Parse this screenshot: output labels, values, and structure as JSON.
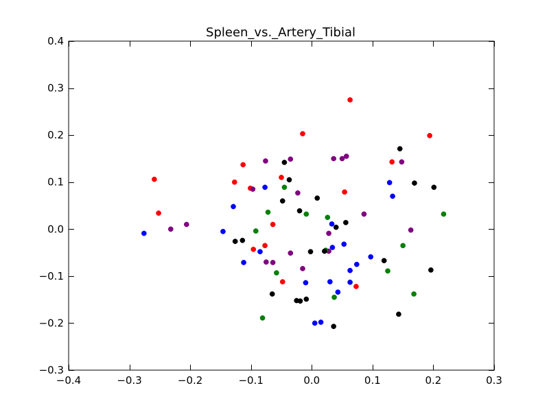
{
  "chart_data": {
    "type": "scatter",
    "title": "Spleen_vs._Artery_Tibial",
    "xlabel": "",
    "ylabel": "",
    "xlim": [
      -0.4,
      0.3
    ],
    "ylim": [
      -0.3,
      0.4
    ],
    "xticks": [
      -0.4,
      -0.3,
      -0.2,
      -0.1,
      0.0,
      0.1,
      0.2,
      0.3
    ],
    "yticks": [
      -0.3,
      -0.2,
      -0.1,
      0.0,
      0.1,
      0.2,
      0.3,
      0.4
    ],
    "xtick_labels": [
      "−0.4",
      "−0.3",
      "−0.2",
      "−0.1",
      "0.0",
      "0.1",
      "0.2",
      "0.3"
    ],
    "ytick_labels": [
      "−0.3",
      "−0.2",
      "−0.1",
      "0.0",
      "0.1",
      "0.2",
      "0.3",
      "0.4"
    ],
    "grid": false,
    "legend": "none",
    "series": [
      {
        "color": "#ff0000",
        "points": [
          [
            -0.259,
            0.106
          ],
          [
            -0.252,
            0.034
          ],
          [
            -0.113,
            0.137
          ],
          [
            -0.127,
            0.1
          ],
          [
            -0.101,
            0.087
          ],
          [
            -0.096,
            -0.043
          ],
          [
            -0.077,
            -0.035
          ],
          [
            -0.064,
            0.01
          ],
          [
            -0.05,
            0.11
          ],
          [
            -0.048,
            -0.112
          ],
          [
            -0.015,
            0.203
          ],
          [
            0.054,
            0.079
          ],
          [
            0.063,
            0.275
          ],
          [
            0.073,
            -0.122
          ],
          [
            0.132,
            0.143
          ],
          [
            0.194,
            0.199
          ]
        ]
      },
      {
        "color": "#800080",
        "points": [
          [
            -0.232,
            0.0
          ],
          [
            -0.206,
            0.01
          ],
          [
            -0.097,
            0.085
          ],
          [
            -0.076,
            0.145
          ],
          [
            -0.075,
            -0.07
          ],
          [
            -0.064,
            -0.071
          ],
          [
            -0.035,
            0.149
          ],
          [
            -0.035,
            -0.051
          ],
          [
            -0.023,
            0.077
          ],
          [
            -0.015,
            -0.084
          ],
          [
            0.028,
            -0.009
          ],
          [
            0.028,
            -0.047
          ],
          [
            0.036,
            0.15
          ],
          [
            0.05,
            0.15
          ],
          [
            0.057,
            0.155
          ],
          [
            0.086,
            0.032
          ],
          [
            0.148,
            0.143
          ],
          [
            0.163,
            -0.002
          ]
        ]
      },
      {
        "color": "#008000",
        "points": [
          [
            -0.092,
            -0.004
          ],
          [
            -0.081,
            -0.189
          ],
          [
            -0.072,
            0.036
          ],
          [
            -0.058,
            -0.093
          ],
          [
            -0.045,
            0.089
          ],
          [
            -0.009,
            0.032
          ],
          [
            0.023,
            -0.045
          ],
          [
            0.026,
            0.025
          ],
          [
            0.037,
            -0.145
          ],
          [
            0.125,
            -0.089
          ],
          [
            0.15,
            -0.035
          ],
          [
            0.168,
            -0.138
          ],
          [
            0.217,
            0.032
          ]
        ]
      },
      {
        "color": "#0000ff",
        "points": [
          [
            -0.276,
            -0.009
          ],
          [
            -0.146,
            -0.005
          ],
          [
            -0.129,
            0.048
          ],
          [
            -0.112,
            -0.071
          ],
          [
            -0.085,
            -0.048
          ],
          [
            -0.077,
            0.089
          ],
          [
            -0.01,
            -0.114
          ],
          [
            0.005,
            -0.2
          ],
          [
            0.015,
            -0.198
          ],
          [
            0.03,
            -0.112
          ],
          [
            0.033,
            0.011
          ],
          [
            0.034,
            -0.039
          ],
          [
            0.043,
            -0.134
          ],
          [
            0.053,
            -0.032
          ],
          [
            0.063,
            -0.088
          ],
          [
            0.063,
            -0.113
          ],
          [
            0.074,
            -0.075
          ],
          [
            0.097,
            -0.059
          ],
          [
            0.128,
            0.099
          ],
          [
            0.133,
            0.07
          ]
        ]
      },
      {
        "color": "#000000",
        "points": [
          [
            -0.126,
            -0.026
          ],
          [
            -0.114,
            -0.024
          ],
          [
            -0.065,
            -0.138
          ],
          [
            -0.048,
            0.06
          ],
          [
            -0.045,
            0.142
          ],
          [
            -0.037,
            0.105
          ],
          [
            -0.025,
            -0.152
          ],
          [
            -0.019,
            -0.153
          ],
          [
            -0.02,
            0.039
          ],
          [
            -0.009,
            -0.149
          ],
          [
            -0.002,
            -0.048
          ],
          [
            0.009,
            0.066
          ],
          [
            0.021,
            -0.047
          ],
          [
            0.036,
            -0.207
          ],
          [
            0.04,
            0.004
          ],
          [
            0.056,
            0.014
          ],
          [
            0.119,
            -0.067
          ],
          [
            0.143,
            -0.181
          ],
          [
            0.145,
            0.171
          ],
          [
            0.169,
            0.098
          ],
          [
            0.196,
            -0.087
          ],
          [
            0.201,
            0.089
          ]
        ]
      }
    ]
  }
}
